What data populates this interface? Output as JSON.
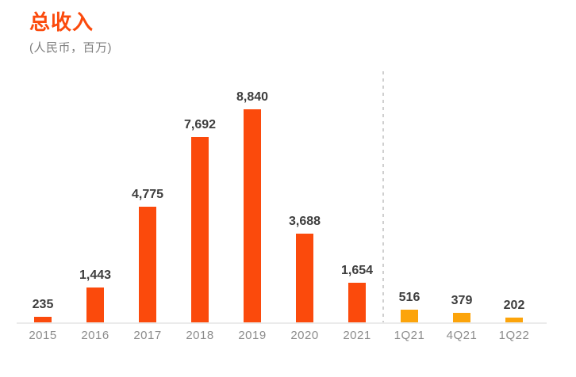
{
  "header": {
    "title": "总收入",
    "subtitle": "(人民币，百万)"
  },
  "chart_data": {
    "type": "bar",
    "title": "总收入",
    "subtitle": "(人民币，百万)",
    "categories": [
      "2015",
      "2016",
      "2017",
      "2018",
      "2019",
      "2020",
      "2021",
      "1Q21",
      "4Q21",
      "1Q22"
    ],
    "values": [
      235,
      1443,
      4775,
      7692,
      8840,
      3688,
      1654,
      516,
      379,
      202
    ],
    "value_labels": [
      "235",
      "1,443",
      "4,775",
      "7,692",
      "8,840",
      "3,688",
      "1,654",
      "516",
      "379",
      "202"
    ],
    "groups": [
      "annual",
      "annual",
      "annual",
      "annual",
      "annual",
      "annual",
      "annual",
      "quarterly",
      "quarterly",
      "quarterly"
    ],
    "series_colors": {
      "annual": "#FB4A0C",
      "quarterly": "#FCA40B"
    },
    "label_color": "#3D3D3D",
    "axis_label_color": "#8C8C8C",
    "separator_after_index": 6,
    "xlabel": "",
    "ylabel": "",
    "ylim": [
      0,
      10400
    ],
    "grid": false,
    "legend": false
  }
}
